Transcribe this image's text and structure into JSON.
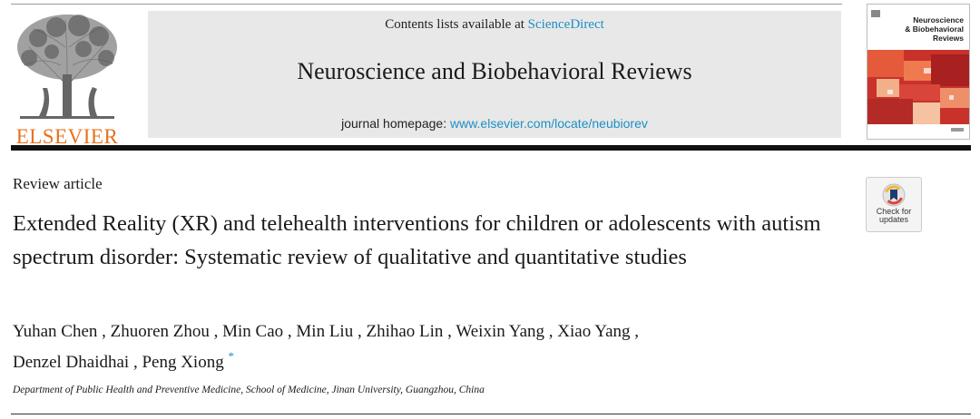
{
  "header": {
    "publisher_logo_text": "ELSEVIER",
    "contents_prefix": "Contents lists available at ",
    "contents_link": "ScienceDirect",
    "journal_title": "Neuroscience and Biobehavioral Reviews",
    "homepage_prefix": "journal homepage: ",
    "homepage_link": "www.elsevier.com/locate/neubiorev",
    "cover_title_line1": "Neuroscience",
    "cover_title_line2": "& Biobehavioral",
    "cover_title_line3": "Reviews"
  },
  "article": {
    "type": "Review article",
    "title": "Extended Reality (XR) and telehealth interventions for children or adolescents with autism spectrum disorder: Systematic review of qualitative and quantitative studies",
    "badge_line1": "Check for",
    "badge_line2": "updates",
    "authors_line1": "Yuhan Chen , Zhuoren Zhou , Min Cao , Min Liu , Zhihao Lin , Weixin Yang , Xiao Yang ,",
    "authors_line2": "Denzel Dhaidhai , Peng Xiong",
    "corresponding_mark": "*",
    "affiliation": "Department of Public Health and Preventive Medicine, School of Medicine, Jinan University, Guangzhou, China"
  },
  "colors": {
    "link": "#1d8fc4",
    "elsevier_orange": "#e9711c",
    "banner_gray": "#e8e8e8"
  },
  "icons": {
    "publisher_logo": "elsevier-tree-logo",
    "cover": "journal-cover-thumbnail",
    "badge": "check-for-updates-icon"
  }
}
